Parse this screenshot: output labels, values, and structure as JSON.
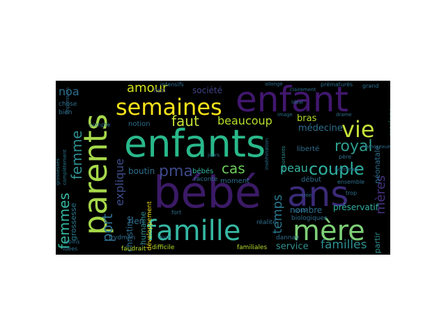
{
  "wordcloud": {
    "words": {
      "enfants": "enfants",
      "bebe": "bébé",
      "enfant": "enfant",
      "parents": "parents",
      "ans": "ans",
      "famille": "famille",
      "mere": "mère",
      "semaines": "semaines",
      "vie": "vie",
      "royal": "royal",
      "couple": "couple",
      "femmes": "femmes",
      "femme": "femme",
      "amour": "amour",
      "faut": "faut",
      "beaucoup": "beaucoup",
      "pma": "pma",
      "cas": "cas",
      "peau": "peau",
      "temps": "temps",
      "meres": "mères",
      "port": "port",
      "explique": "explique",
      "grossesse": "grossesse",
      "familles": "familles",
      "service": "service",
      "preservatif": "préservatif",
      "noa": "noa",
      "societe": "société",
      "medecine": "médecine",
      "bras": "bras",
      "mariage": "mariage",
      "neonatale": "néonatale",
      "christine": "christine",
      "humaine": "humaine",
      "boutin": "boutin",
      "bebes": "bébés",
      "rien": "rien",
      "notion": "notion",
      "moment": "moment",
      "raconte": "raconte",
      "debut": "début",
      "nombre": "nombre",
      "partir": "partir",
      "lien": "lien",
      "faudrait": "faudrait",
      "difficile": "difficile",
      "familiales": "familiales",
      "dannay": "dannay",
      "frydman": "frydman",
      "soins": "soins",
      "idees": "idées",
      "realite": "réalité",
      "biologiques": "biologiques",
      "liberte": "liberté",
      "hommes": "hommes",
      "pere": "père",
      "ensemble": "ensemble",
      "trop": "trop",
      "chose": "chose",
      "bien": "bien",
      "compte": "compte",
      "premature": "prématurés",
      "grand": "grand",
      "intensifs": "intensifs",
      "clairement": "clairement",
      "allonge": "allongé",
      "fort": "fort",
      "ideal": "idéal",
      "drame": "drame",
      "image": "image",
      "jours": "jours",
      "vivre": "vivre",
      "developpement": "développement",
      "grossesses": "grossesses",
      "completement": "complètement",
      "impression": "impression",
      "homosexuel": "homosexuel",
      "coute": "coûte",
      "cree": "créé",
      "importants": "importants",
      "insemination": "insémination"
    }
  }
}
